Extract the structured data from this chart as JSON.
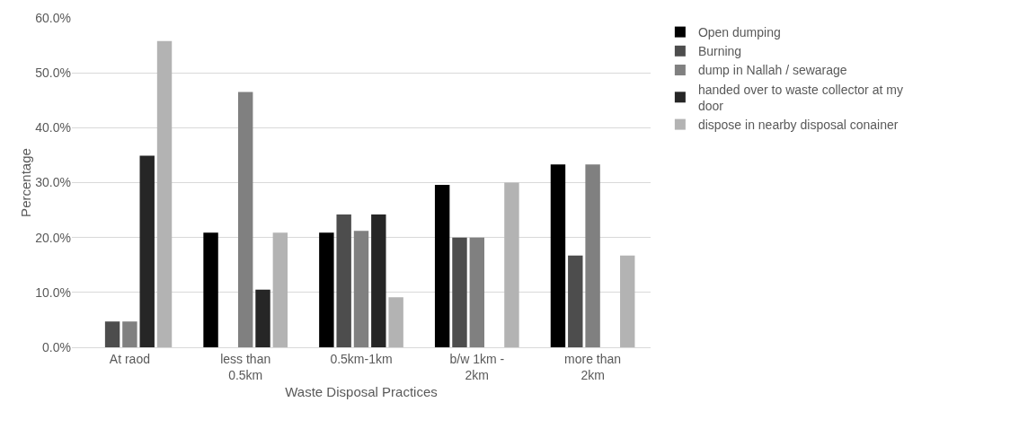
{
  "chart_data": {
    "type": "bar",
    "xlabel": "Waste Disposal Practices",
    "ylabel": "Percentage",
    "categories": [
      "At raod",
      "less than 0.5km",
      "0.5km-1km",
      "b/w 1km - 2km",
      "more than 2km"
    ],
    "series": [
      {
        "name": "Open dumping",
        "color": "#000000",
        "values": [
          0,
          20.9,
          20.9,
          29.6,
          33.3
        ]
      },
      {
        "name": "Burning",
        "color": "#4d4d4d",
        "values": [
          4.7,
          0,
          24.2,
          20.0,
          16.7
        ]
      },
      {
        "name": "dump in Nallah / sewarage",
        "color": "#808080",
        "values": [
          4.7,
          46.5,
          21.2,
          20.0,
          33.3
        ]
      },
      {
        "name": "handed over to waste collector at my door",
        "color": "#262626",
        "values": [
          34.9,
          10.5,
          24.2,
          0,
          0
        ]
      },
      {
        "name": "dispose in nearby disposal conainer",
        "color": "#b3b3b3",
        "values": [
          55.8,
          20.9,
          9.1,
          30.0,
          16.7
        ]
      }
    ],
    "ylim": [
      0,
      60
    ],
    "yticks": [
      {
        "value": 0,
        "label": "0.0%"
      },
      {
        "value": 10,
        "label": "10.0%"
      },
      {
        "value": 20,
        "label": "20.0%"
      },
      {
        "value": 30,
        "label": "30.0%"
      },
      {
        "value": 40,
        "label": "40.0%"
      },
      {
        "value": 50,
        "label": "50.0%"
      },
      {
        "value": 60,
        "label": "60.0%"
      }
    ],
    "grid": "y",
    "legend": "right"
  }
}
